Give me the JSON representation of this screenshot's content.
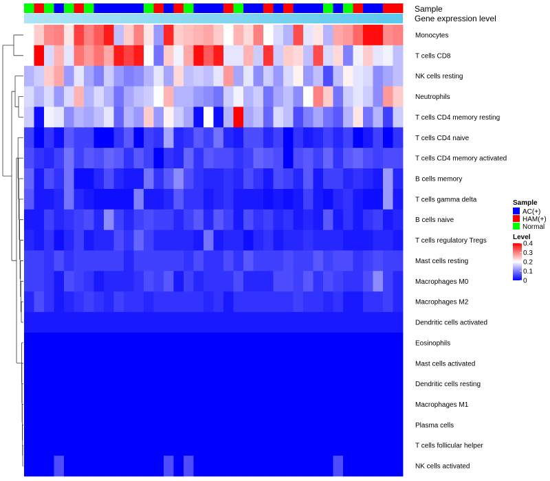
{
  "chart_data": {
    "type": "heatmap",
    "annotation_tracks": [
      "Sample",
      "Gene expression level"
    ],
    "rows": [
      "Monocytes",
      "T cells CD8",
      "NK cells resting",
      "Neutrophils",
      "T cells CD4 memory resting",
      "T cells CD4 naive",
      "T cells CD4 memory activated",
      "B cells memory",
      "T cells gamma delta",
      "B cells naive",
      "T cells regulatory  Tregs",
      "Mast cells resting",
      "Macrophages M0",
      "Macrophages M2",
      "Dendritic cells activated",
      "Eosinophils",
      "Mast cells activated",
      "Dendritic cells resting",
      "Macrophages M1",
      "Plasma cells",
      "T cells follicular helper",
      "NK cells activated"
    ],
    "columns": 38,
    "sample_groups": [
      "G",
      "R",
      "G",
      "B",
      "G",
      "R",
      "G",
      "B",
      "B",
      "B",
      "B",
      "B",
      "G",
      "R",
      "B",
      "R",
      "G",
      "B",
      "B",
      "B",
      "R",
      "G",
      "B",
      "B",
      "R",
      "B",
      "R",
      "B",
      "B",
      "B",
      "G",
      "B",
      "G",
      "R",
      "B",
      "B",
      "R",
      "R"
    ],
    "values": [
      [
        0.2,
        0.24,
        0.29,
        0.3,
        0.22,
        0.35,
        0.3,
        0.33,
        0.38,
        0.15,
        0.24,
        0.3,
        0.22,
        0.12,
        0.37,
        0.24,
        0.25,
        0.26,
        0.27,
        0.24,
        0.2,
        0.26,
        0.23,
        0.3,
        0.2,
        0.17,
        0.14,
        0.34,
        0.18,
        0.22,
        0.14,
        0.27,
        0.28,
        0.32,
        0.39,
        0.39,
        0.29,
        0.3
      ],
      [
        0.2,
        0.4,
        0.17,
        0.26,
        0.18,
        0.31,
        0.28,
        0.31,
        0.27,
        0.38,
        0.35,
        0.38,
        0.2,
        0.09,
        0.24,
        0.19,
        0.27,
        0.39,
        0.33,
        0.38,
        0.18,
        0.18,
        0.26,
        0.16,
        0.36,
        0.16,
        0.24,
        0.23,
        0.15,
        0.34,
        0.17,
        0.23,
        0.1,
        0.19,
        0.24,
        0.18,
        0.19,
        0.15
      ],
      [
        0.14,
        0.16,
        0.24,
        0.27,
        0.12,
        0.18,
        0.13,
        0.1,
        0.16,
        0.12,
        0.1,
        0.11,
        0.14,
        0.18,
        0.13,
        0.23,
        0.15,
        0.16,
        0.15,
        0.18,
        0.28,
        0.13,
        0.18,
        0.11,
        0.16,
        0.12,
        0.17,
        0.21,
        0.12,
        0.15,
        0.06,
        0.15,
        0.21,
        0.18,
        0.17,
        0.11,
        0.13,
        0.15
      ],
      [
        0.17,
        0.14,
        0.17,
        0.12,
        0.17,
        0.26,
        0.14,
        0.17,
        0.14,
        0.09,
        0.13,
        0.15,
        0.16,
        0.2,
        0.26,
        0.14,
        0.14,
        0.12,
        0.11,
        0.09,
        0.16,
        0.19,
        0.14,
        0.16,
        0.09,
        0.13,
        0.15,
        0.11,
        0.2,
        0.3,
        0.24,
        0.09,
        0.16,
        0.18,
        0.16,
        0.11,
        0.28,
        0.24
      ],
      [
        0.16,
        0.01,
        0.19,
        0.18,
        0.11,
        0.14,
        0.13,
        0.15,
        0.18,
        0.08,
        0.14,
        0.12,
        0.24,
        0.12,
        0.21,
        0.16,
        0.13,
        0.01,
        0.2,
        0.01,
        0.14,
        0.4,
        0.13,
        0.15,
        0.08,
        0.17,
        0.15,
        0.06,
        0.1,
        0.13,
        0.09,
        0.07,
        0.14,
        0.22,
        0.09,
        0.14,
        0.05,
        0.16
      ],
      [
        0.05,
        0.0,
        0.04,
        0.01,
        0.07,
        0.05,
        0.05,
        0.0,
        0.0,
        0.04,
        0.07,
        0.0,
        0.05,
        0.04,
        0.13,
        0.03,
        0.04,
        0.07,
        0.05,
        0.09,
        0.03,
        0.02,
        0.06,
        0.06,
        0.03,
        0.05,
        0.0,
        0.04,
        0.02,
        0.03,
        0.05,
        0.03,
        0.05,
        0.0,
        0.02,
        0.05,
        0.0,
        0.04
      ],
      [
        0.06,
        0.04,
        0.03,
        0.05,
        0.09,
        0.05,
        0.07,
        0.06,
        0.08,
        0.07,
        0.04,
        0.07,
        0.05,
        0.0,
        0.04,
        0.03,
        0.08,
        0.04,
        0.07,
        0.06,
        0.06,
        0.04,
        0.05,
        0.08,
        0.07,
        0.06,
        0.0,
        0.06,
        0.07,
        0.05,
        0.08,
        0.04,
        0.07,
        0.08,
        0.06,
        0.05,
        0.06,
        0.06
      ],
      [
        0.08,
        0.02,
        0.06,
        0.04,
        0.09,
        0.01,
        0.01,
        0.03,
        0.06,
        0.03,
        0.02,
        0.02,
        0.09,
        0.04,
        0.07,
        0.11,
        0.06,
        0.04,
        0.03,
        0.03,
        0.04,
        0.03,
        0.06,
        0.04,
        0.02,
        0.06,
        0.05,
        0.03,
        0.07,
        0.02,
        0.05,
        0.05,
        0.03,
        0.04,
        0.03,
        0.02,
        0.12,
        0.03
      ],
      [
        0.07,
        0.02,
        0.02,
        0.03,
        0.09,
        0.03,
        0.02,
        0.01,
        0.01,
        0.01,
        0.01,
        0.1,
        0.02,
        0.02,
        0.03,
        0.07,
        0.04,
        0.04,
        0.02,
        0.03,
        0.04,
        0.02,
        0.02,
        0.02,
        0.01,
        0.02,
        0.01,
        0.02,
        0.05,
        0.02,
        0.01,
        0.03,
        0.04,
        0.02,
        0.01,
        0.01,
        0.12,
        0.02
      ],
      [
        0.02,
        0.02,
        0.05,
        0.03,
        0.04,
        0.05,
        0.06,
        0.03,
        0.11,
        0.05,
        0.03,
        0.05,
        0.06,
        0.05,
        0.05,
        0.03,
        0.05,
        0.07,
        0.03,
        0.07,
        0.05,
        0.02,
        0.06,
        0.04,
        0.05,
        0.03,
        0.04,
        0.02,
        0.03,
        0.02,
        0.07,
        0.02,
        0.04,
        0.02,
        0.04,
        0.05,
        0.02,
        0.03
      ],
      [
        0.03,
        0.02,
        0.04,
        0.01,
        0.03,
        0.05,
        0.02,
        0.03,
        0.03,
        0.06,
        0.04,
        0.08,
        0.05,
        0.03,
        0.03,
        0.03,
        0.03,
        0.02,
        0.09,
        0.02,
        0.03,
        0.03,
        0.01,
        0.03,
        0.04,
        0.02,
        0.03,
        0.03,
        0.04,
        0.03,
        0.03,
        0.03,
        0.02,
        0.02,
        0.02,
        0.03,
        0.03,
        0.02
      ],
      [
        0.05,
        0.05,
        0.04,
        0.06,
        0.04,
        0.05,
        0.05,
        0.05,
        0.05,
        0.05,
        0.03,
        0.05,
        0.05,
        0.05,
        0.05,
        0.05,
        0.04,
        0.06,
        0.04,
        0.04,
        0.06,
        0.04,
        0.07,
        0.05,
        0.05,
        0.05,
        0.06,
        0.05,
        0.05,
        0.07,
        0.05,
        0.06,
        0.06,
        0.04,
        0.05,
        0.06,
        0.05,
        0.05
      ],
      [
        0.05,
        0.05,
        0.04,
        0.02,
        0.06,
        0.05,
        0.04,
        0.02,
        0.03,
        0.03,
        0.03,
        0.04,
        0.06,
        0.05,
        0.07,
        0.02,
        0.05,
        0.03,
        0.04,
        0.04,
        0.04,
        0.06,
        0.03,
        0.03,
        0.03,
        0.06,
        0.06,
        0.05,
        0.07,
        0.04,
        0.06,
        0.05,
        0.04,
        0.04,
        0.06,
        0.11,
        0.05,
        0.03
      ],
      [
        0.03,
        0.06,
        0.04,
        0.02,
        0.03,
        0.04,
        0.05,
        0.04,
        0.03,
        0.05,
        0.04,
        0.04,
        0.03,
        0.04,
        0.04,
        0.04,
        0.04,
        0.04,
        0.03,
        0.04,
        0.02,
        0.04,
        0.04,
        0.04,
        0.04,
        0.04,
        0.04,
        0.05,
        0.04,
        0.04,
        0.03,
        0.04,
        0.02,
        0.02,
        0.04,
        0.04,
        0.05,
        0.03
      ],
      [
        0.02,
        0.02,
        0.02,
        0.02,
        0.02,
        0.02,
        0.02,
        0.02,
        0.02,
        0.02,
        0.02,
        0.02,
        0.02,
        0.02,
        0.02,
        0.02,
        0.02,
        0.02,
        0.02,
        0.02,
        0.02,
        0.02,
        0.02,
        0.02,
        0.02,
        0.02,
        0.02,
        0.02,
        0.02,
        0.02,
        0.02,
        0.02,
        0.02,
        0.02,
        0.02,
        0.02,
        0.02,
        0.02
      ],
      [
        0.0,
        0.0,
        0.0,
        0.0,
        0.0,
        0.0,
        0.0,
        0.0,
        0.0,
        0.0,
        0.0,
        0.0,
        0.0,
        0.0,
        0.0,
        0.0,
        0.0,
        0.0,
        0.0,
        0.0,
        0.0,
        0.0,
        0.0,
        0.0,
        0.0,
        0.0,
        0.0,
        0.0,
        0.0,
        0.0,
        0.0,
        0.0,
        0.0,
        0.0,
        0.0,
        0.0,
        0.0,
        0.0
      ],
      [
        0.0,
        0.0,
        0.0,
        0.0,
        0.0,
        0.0,
        0.0,
        0.0,
        0.0,
        0.0,
        0.0,
        0.0,
        0.0,
        0.0,
        0.0,
        0.0,
        0.0,
        0.0,
        0.0,
        0.0,
        0.0,
        0.0,
        0.0,
        0.0,
        0.0,
        0.0,
        0.0,
        0.0,
        0.0,
        0.0,
        0.0,
        0.0,
        0.0,
        0.0,
        0.0,
        0.0,
        0.0,
        0.0
      ],
      [
        0.0,
        0.0,
        0.0,
        0.0,
        0.0,
        0.0,
        0.0,
        0.0,
        0.0,
        0.0,
        0.0,
        0.0,
        0.0,
        0.0,
        0.0,
        0.0,
        0.0,
        0.0,
        0.0,
        0.0,
        0.0,
        0.0,
        0.0,
        0.0,
        0.0,
        0.0,
        0.0,
        0.0,
        0.0,
        0.0,
        0.0,
        0.0,
        0.0,
        0.0,
        0.0,
        0.0,
        0.0,
        0.0
      ],
      [
        0.0,
        0.0,
        0.0,
        0.0,
        0.0,
        0.0,
        0.0,
        0.0,
        0.0,
        0.0,
        0.0,
        0.0,
        0.0,
        0.0,
        0.0,
        0.0,
        0.0,
        0.0,
        0.0,
        0.0,
        0.0,
        0.0,
        0.0,
        0.0,
        0.0,
        0.0,
        0.0,
        0.0,
        0.0,
        0.0,
        0.0,
        0.0,
        0.0,
        0.0,
        0.0,
        0.0,
        0.0,
        0.0
      ],
      [
        0.0,
        0.0,
        0.0,
        0.0,
        0.0,
        0.0,
        0.0,
        0.0,
        0.0,
        0.0,
        0.0,
        0.0,
        0.0,
        0.0,
        0.0,
        0.0,
        0.0,
        0.0,
        0.0,
        0.0,
        0.0,
        0.0,
        0.0,
        0.0,
        0.0,
        0.0,
        0.0,
        0.0,
        0.0,
        0.0,
        0.0,
        0.0,
        0.0,
        0.0,
        0.0,
        0.0,
        0.0,
        0.0
      ],
      [
        0.0,
        0.0,
        0.0,
        0.0,
        0.0,
        0.0,
        0.0,
        0.0,
        0.0,
        0.0,
        0.0,
        0.0,
        0.0,
        0.0,
        0.0,
        0.0,
        0.0,
        0.0,
        0.0,
        0.0,
        0.0,
        0.0,
        0.0,
        0.0,
        0.0,
        0.0,
        0.0,
        0.0,
        0.0,
        0.0,
        0.0,
        0.0,
        0.0,
        0.0,
        0.0,
        0.0,
        0.0,
        0.0
      ],
      [
        0.0,
        0.0,
        0.0,
        0.06,
        0.0,
        0.0,
        0.0,
        0.0,
        0.0,
        0.0,
        0.0,
        0.0,
        0.0,
        0.0,
        0.06,
        0.0,
        0.06,
        0.0,
        0.0,
        0.0,
        0.0,
        0.0,
        0.0,
        0.0,
        0.0,
        0.0,
        0.0,
        0.0,
        0.0,
        0.0,
        0.0,
        0.06,
        0.0,
        0.0,
        0.0,
        0.0,
        0.0,
        0.0
      ]
    ],
    "color_scale": {
      "min": 0,
      "mid": 0.2,
      "max": 0.4,
      "low": "#0000FF",
      "midColor": "#FFFFFF",
      "high": "#FF0000"
    },
    "legend": {
      "sample_title": "Sample",
      "sample_items": [
        {
          "key": "B",
          "label": "AC(+)",
          "color": "#0000FF"
        },
        {
          "key": "R",
          "label": "HAM(+)",
          "color": "#FF0000"
        },
        {
          "key": "G",
          "label": "Normal",
          "color": "#00FF00"
        }
      ],
      "level_title": "Level",
      "level_ticks": [
        "0.4",
        "0.3",
        "0.2",
        "0.1",
        "0"
      ],
      "level_tick_values": [
        0.4,
        0.3,
        0.2,
        0.1,
        0
      ]
    },
    "gene_track_colors": [
      "#AEE4F5",
      "#5BC8EE"
    ],
    "row_dendrogram": true
  }
}
